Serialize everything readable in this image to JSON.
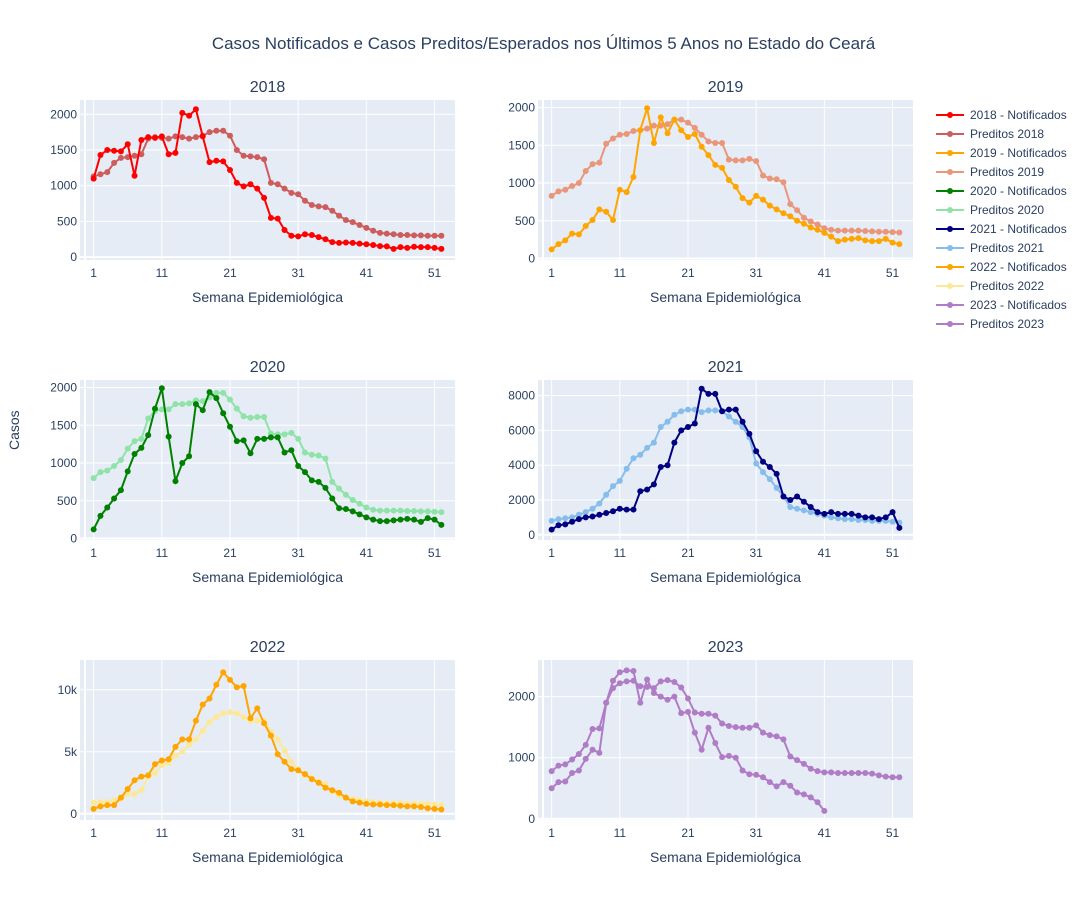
{
  "title": "Casos Notificados e Casos Preditos/Esperados nos Últimos 5 Anos no Estado do Ceará",
  "ylabel": "Casos",
  "chart_data": [
    {
      "type": "line",
      "title": "2018",
      "xlabel": "Semana Epidemiológica",
      "xticks": [
        1,
        11,
        21,
        31,
        41,
        51
      ],
      "xlim": [
        -1,
        54
      ],
      "ylim": [
        -40,
        2200
      ],
      "yticks": [
        0,
        500,
        1000,
        1500,
        2000
      ],
      "ytick_labels": [
        "0",
        "500",
        "1000",
        "1500",
        "2000"
      ],
      "series": [
        {
          "name": "2018 - Notificados",
          "color": "#ff0000",
          "x_start": 1,
          "values": [
            1100,
            1430,
            1500,
            1490,
            1480,
            1580,
            1140,
            1640,
            1680,
            1670,
            1690,
            1440,
            1460,
            2020,
            1980,
            2070,
            1690,
            1330,
            1350,
            1340,
            1220,
            1040,
            990,
            1020,
            960,
            830,
            550,
            540,
            380,
            300,
            290,
            320,
            310,
            280,
            250,
            210,
            200,
            205,
            200,
            190,
            180,
            170,
            155,
            150,
            115,
            140,
            130,
            145,
            140,
            140,
            130,
            115
          ]
        },
        {
          "name": "Preditos 2018",
          "color": "#cd5c5c",
          "x_start": 1,
          "values": [
            1130,
            1160,
            1190,
            1320,
            1390,
            1400,
            1420,
            1440,
            1660,
            1680,
            1670,
            1660,
            1690,
            1680,
            1660,
            1680,
            1700,
            1750,
            1770,
            1770,
            1700,
            1500,
            1420,
            1410,
            1400,
            1370,
            1040,
            1020,
            960,
            900,
            880,
            790,
            730,
            710,
            700,
            650,
            580,
            520,
            490,
            450,
            410,
            370,
            340,
            330,
            320,
            310,
            310,
            305,
            305,
            300,
            300,
            300
          ]
        }
      ]
    },
    {
      "type": "line",
      "title": "2019",
      "xlabel": "Semana Epidemiológica",
      "xticks": [
        1,
        11,
        21,
        31,
        41,
        51
      ],
      "xlim": [
        -1,
        54
      ],
      "ylim": [
        -20,
        2100
      ],
      "yticks": [
        0,
        500,
        1000,
        1500,
        2000
      ],
      "ytick_labels": [
        "0",
        "500",
        "1000",
        "1500",
        "2000"
      ],
      "series": [
        {
          "name": "2019 - Notificados",
          "color": "#ffa500",
          "x_start": 1,
          "values": [
            120,
            190,
            240,
            330,
            320,
            430,
            510,
            650,
            620,
            510,
            910,
            880,
            1080,
            1700,
            1990,
            1530,
            1870,
            1660,
            1840,
            1700,
            1610,
            1650,
            1480,
            1370,
            1240,
            1200,
            1040,
            950,
            800,
            740,
            830,
            780,
            700,
            650,
            600,
            560,
            500,
            460,
            410,
            380,
            340,
            290,
            230,
            250,
            260,
            270,
            240,
            230,
            230,
            260,
            210,
            190
          ]
        },
        {
          "name": "Preditos 2019",
          "color": "#e9967a",
          "x_start": 1,
          "values": [
            830,
            890,
            910,
            960,
            1000,
            1160,
            1250,
            1270,
            1520,
            1590,
            1640,
            1650,
            1690,
            1700,
            1720,
            1760,
            1760,
            1780,
            1840,
            1840,
            1800,
            1730,
            1640,
            1550,
            1530,
            1530,
            1310,
            1300,
            1300,
            1320,
            1290,
            1100,
            1060,
            1050,
            1010,
            720,
            640,
            540,
            490,
            450,
            400,
            380,
            370,
            370,
            370,
            370,
            365,
            360,
            355,
            355,
            350,
            345
          ]
        }
      ]
    },
    {
      "type": "line",
      "title": "2020",
      "xlabel": "Semana Epidemiológica",
      "xticks": [
        1,
        11,
        21,
        31,
        41,
        51
      ],
      "xlim": [
        -1,
        54
      ],
      "ylim": [
        -20,
        2100
      ],
      "yticks": [
        0,
        500,
        1000,
        1500,
        2000
      ],
      "ytick_labels": [
        "0",
        "500",
        "1000",
        "1500",
        "2000"
      ],
      "series": [
        {
          "name": "2020 - Notificados",
          "color": "#008000",
          "x_start": 1,
          "values": [
            120,
            300,
            410,
            530,
            640,
            890,
            1120,
            1200,
            1370,
            1720,
            1990,
            1350,
            760,
            1000,
            1090,
            1780,
            1700,
            1940,
            1860,
            1660,
            1480,
            1290,
            1300,
            1130,
            1320,
            1320,
            1340,
            1340,
            1140,
            1170,
            960,
            880,
            770,
            750,
            670,
            530,
            400,
            390,
            360,
            320,
            280,
            250,
            230,
            230,
            240,
            250,
            260,
            250,
            220,
            270,
            250,
            180
          ]
        },
        {
          "name": "Preditos 2020",
          "color": "#8fe3a8",
          "x_start": 1,
          "values": [
            800,
            880,
            900,
            960,
            1040,
            1190,
            1290,
            1320,
            1590,
            1690,
            1710,
            1710,
            1780,
            1780,
            1790,
            1830,
            1820,
            1870,
            1930,
            1930,
            1840,
            1720,
            1620,
            1600,
            1610,
            1610,
            1390,
            1380,
            1380,
            1400,
            1320,
            1140,
            1110,
            1100,
            1060,
            750,
            660,
            580,
            510,
            460,
            410,
            380,
            370,
            370,
            370,
            370,
            365,
            365,
            360,
            360,
            355,
            350
          ]
        }
      ]
    },
    {
      "type": "line",
      "title": "2021",
      "xlabel": "Semana Epidemiológica",
      "xticks": [
        1,
        11,
        21,
        31,
        41,
        51
      ],
      "xlim": [
        -1,
        54
      ],
      "ylim": [
        -300,
        8900
      ],
      "yticks": [
        0,
        2000,
        4000,
        6000,
        8000
      ],
      "ytick_labels": [
        "0",
        "2000",
        "4000",
        "6000",
        "8000"
      ],
      "series": [
        {
          "name": "2021 - Notificados",
          "color": "#000080",
          "x_start": 1,
          "values": [
            300,
            550,
            600,
            750,
            900,
            1000,
            1050,
            1150,
            1250,
            1350,
            1500,
            1450,
            1450,
            2500,
            2600,
            2900,
            3900,
            4000,
            5300,
            6000,
            6200,
            6400,
            8400,
            8100,
            8100,
            7100,
            7200,
            7200,
            6500,
            5800,
            4800,
            4200,
            3900,
            3500,
            2200,
            2000,
            2200,
            1900,
            1600,
            1300,
            1200,
            1300,
            1200,
            1200,
            1200,
            1100,
            1000,
            1000,
            900,
            1000,
            1300,
            400
          ]
        },
        {
          "name": "Preditos 2021",
          "color": "#87bdeb",
          "x_start": 1,
          "values": [
            800,
            900,
            950,
            1000,
            1150,
            1300,
            1500,
            1800,
            2300,
            2800,
            3100,
            3800,
            4400,
            4600,
            5000,
            5300,
            6200,
            6500,
            6900,
            7100,
            7200,
            7200,
            7050,
            7150,
            7150,
            7100,
            6800,
            6500,
            6200,
            5600,
            4100,
            3600,
            3200,
            2700,
            2200,
            1600,
            1500,
            1400,
            1300,
            1200,
            1100,
            1000,
            950,
            900,
            900,
            850,
            850,
            800,
            800,
            800,
            750,
            700
          ]
        }
      ]
    },
    {
      "type": "line",
      "title": "2022",
      "xlabel": "Semana Epidemiológica",
      "xticks": [
        1,
        11,
        21,
        31,
        41,
        51
      ],
      "xlim": [
        -1,
        54
      ],
      "ylim": [
        -500,
        12400
      ],
      "yticks": [
        0,
        5000,
        10000
      ],
      "ytick_labels": [
        "0",
        "5k",
        "10k"
      ],
      "series": [
        {
          "name": "2022 - Notificados",
          "color": "#ffa500",
          "x_start": 1,
          "values": [
            400,
            600,
            700,
            700,
            1300,
            2000,
            2700,
            3000,
            3100,
            4000,
            4300,
            4400,
            5400,
            6000,
            6000,
            7500,
            8800,
            9300,
            10400,
            11400,
            10800,
            10200,
            10300,
            7700,
            8500,
            7300,
            6300,
            4800,
            4200,
            3600,
            3500,
            3200,
            2800,
            2500,
            2100,
            1900,
            1700,
            1300,
            1000,
            900,
            800,
            750,
            750,
            700,
            700,
            650,
            600,
            600,
            550,
            450,
            400,
            350
          ]
        },
        {
          "name": "Preditos 2022",
          "color": "#fde89a",
          "x_start": 1,
          "values": [
            900,
            950,
            950,
            1100,
            1200,
            1600,
            1600,
            1900,
            3000,
            3300,
            3900,
            4100,
            4700,
            5000,
            5600,
            6000,
            6700,
            7400,
            7800,
            8100,
            8200,
            8100,
            7800,
            7500,
            7500,
            7500,
            6600,
            6000,
            5100,
            4200,
            3600,
            3100,
            2900,
            2600,
            2400,
            1800,
            1500,
            1300,
            1200,
            1100,
            1000,
            950,
            900,
            850,
            850,
            850,
            800,
            800,
            800,
            800,
            750,
            700
          ]
        }
      ]
    },
    {
      "type": "line",
      "title": "2023",
      "xlabel": "Semana Epidemiológica",
      "xticks": [
        1,
        11,
        21,
        31,
        41,
        51
      ],
      "xlim": [
        -1,
        54
      ],
      "ylim": [
        -20,
        2600
      ],
      "yticks": [
        0,
        1000,
        2000
      ],
      "ytick_labels": [
        "0",
        "1000",
        "2000"
      ],
      "series": [
        {
          "name": "2023 - Notificados",
          "color": "#b07cc6",
          "x_start": 1,
          "values": [
            500,
            600,
            610,
            750,
            790,
            980,
            1130,
            1080,
            1900,
            2260,
            2400,
            2430,
            2420,
            1900,
            2280,
            2060,
            2000,
            1950,
            2000,
            1730,
            1750,
            1410,
            1130,
            1490,
            1240,
            1010,
            1030,
            1000,
            790,
            730,
            720,
            680,
            600,
            530,
            600,
            540,
            430,
            400,
            350,
            270,
            130
          ]
        },
        {
          "name": "Preditos 2023",
          "color": "#b07cc6",
          "x_start": 1,
          "values": [
            780,
            870,
            890,
            970,
            1060,
            1210,
            1470,
            1480,
            1900,
            2140,
            2220,
            2250,
            2260,
            2170,
            2160,
            2140,
            2250,
            2270,
            2240,
            2150,
            1970,
            1740,
            1720,
            1720,
            1690,
            1560,
            1520,
            1500,
            1490,
            1490,
            1530,
            1410,
            1370,
            1350,
            1300,
            1020,
            960,
            900,
            820,
            780,
            760,
            760,
            750,
            750,
            750,
            750,
            750,
            740,
            710,
            690,
            680,
            680
          ]
        }
      ]
    }
  ],
  "legend": {
    "placement": "right",
    "items": [
      {
        "label": "2018 - Notificados",
        "color": "#ff0000"
      },
      {
        "label": "Preditos 2018",
        "color": "#cd5c5c"
      },
      {
        "label": "2019 - Notificados",
        "color": "#ffa500"
      },
      {
        "label": "Preditos 2019",
        "color": "#e9967a"
      },
      {
        "label": "2020 - Notificados",
        "color": "#008000"
      },
      {
        "label": "Preditos 2020",
        "color": "#8fe3a8"
      },
      {
        "label": "2021 - Notificados",
        "color": "#000080"
      },
      {
        "label": "Preditos 2021",
        "color": "#87bdeb"
      },
      {
        "label": "2022 - Notificados",
        "color": "#ffa500"
      },
      {
        "label": "Preditos 2022",
        "color": "#fde89a"
      },
      {
        "label": "2023 - Notificados",
        "color": "#b07cc6"
      },
      {
        "label": "Preditos 2023",
        "color": "#b07cc6"
      }
    ]
  }
}
